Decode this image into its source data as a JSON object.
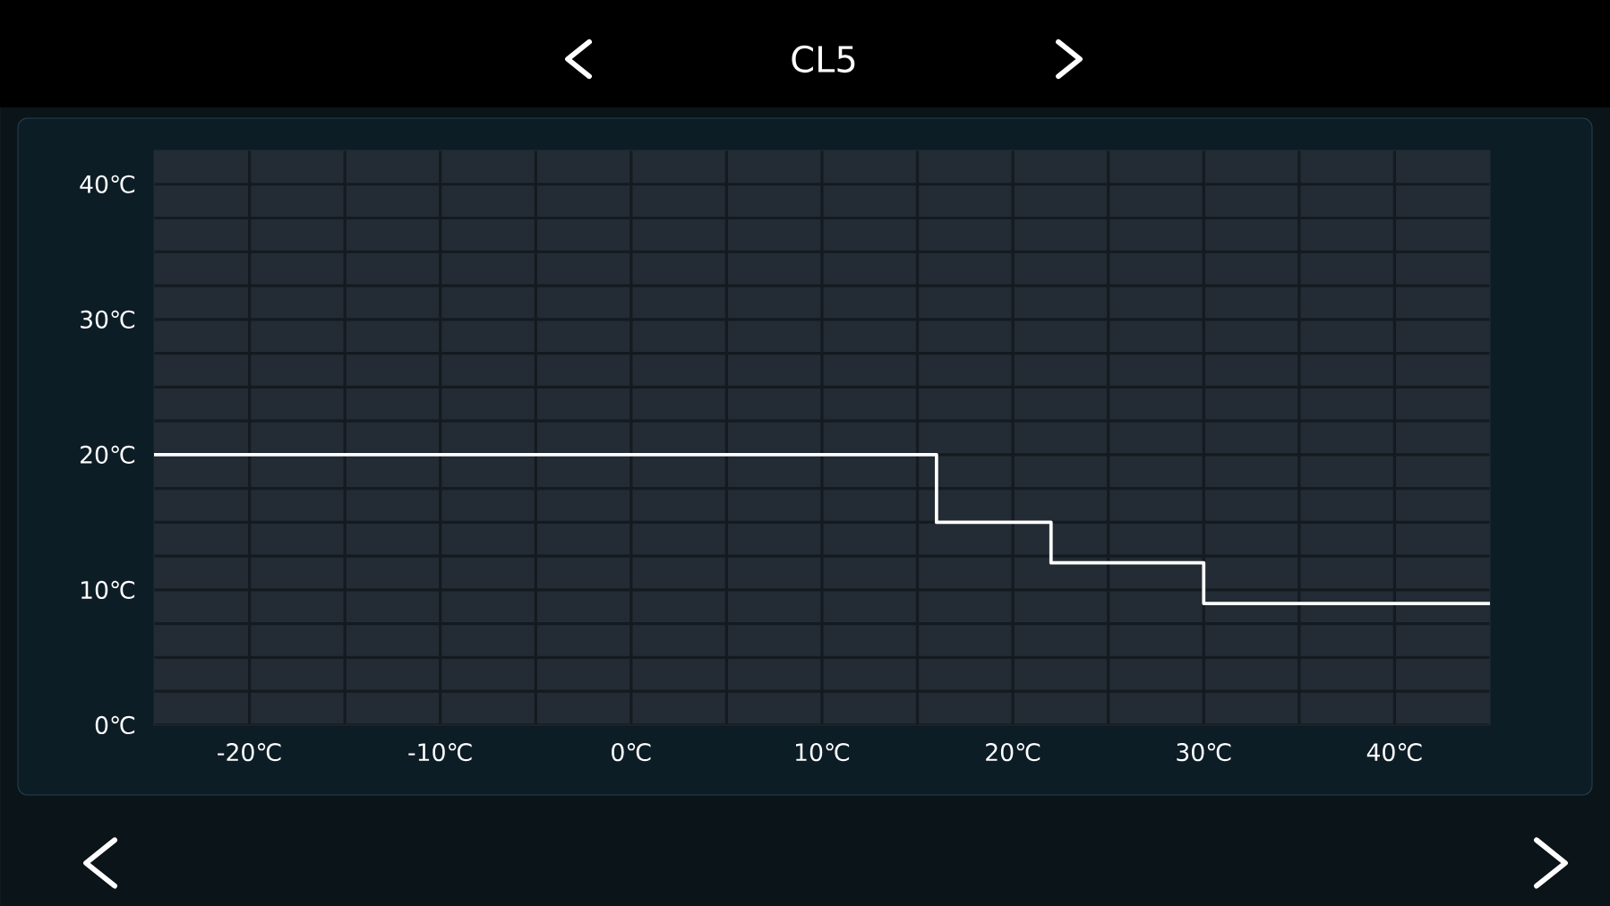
{
  "chart_data": {
    "type": "step",
    "title": "CL5",
    "x": [
      -25,
      16,
      22,
      30,
      45
    ],
    "values": [
      20,
      15,
      12,
      9,
      9
    ],
    "color": "#ffffff",
    "xlim": [
      -25,
      45
    ],
    "ylim": [
      0,
      42.5
    ],
    "xticks": [
      {
        "value": -20,
        "label": "-20℃"
      },
      {
        "value": -10,
        "label": "-10℃"
      },
      {
        "value": 0,
        "label": "0℃"
      },
      {
        "value": 10,
        "label": "10℃"
      },
      {
        "value": 20,
        "label": "20℃"
      },
      {
        "value": 30,
        "label": "30℃"
      },
      {
        "value": 40,
        "label": "40℃"
      }
    ],
    "yticks": [
      {
        "value": 0,
        "label": "0℃"
      },
      {
        "value": 10,
        "label": "10℃"
      },
      {
        "value": 20,
        "label": "20℃"
      },
      {
        "value": 30,
        "label": "30℃"
      },
      {
        "value": 40,
        "label": "40℃"
      }
    ],
    "grid": true
  }
}
